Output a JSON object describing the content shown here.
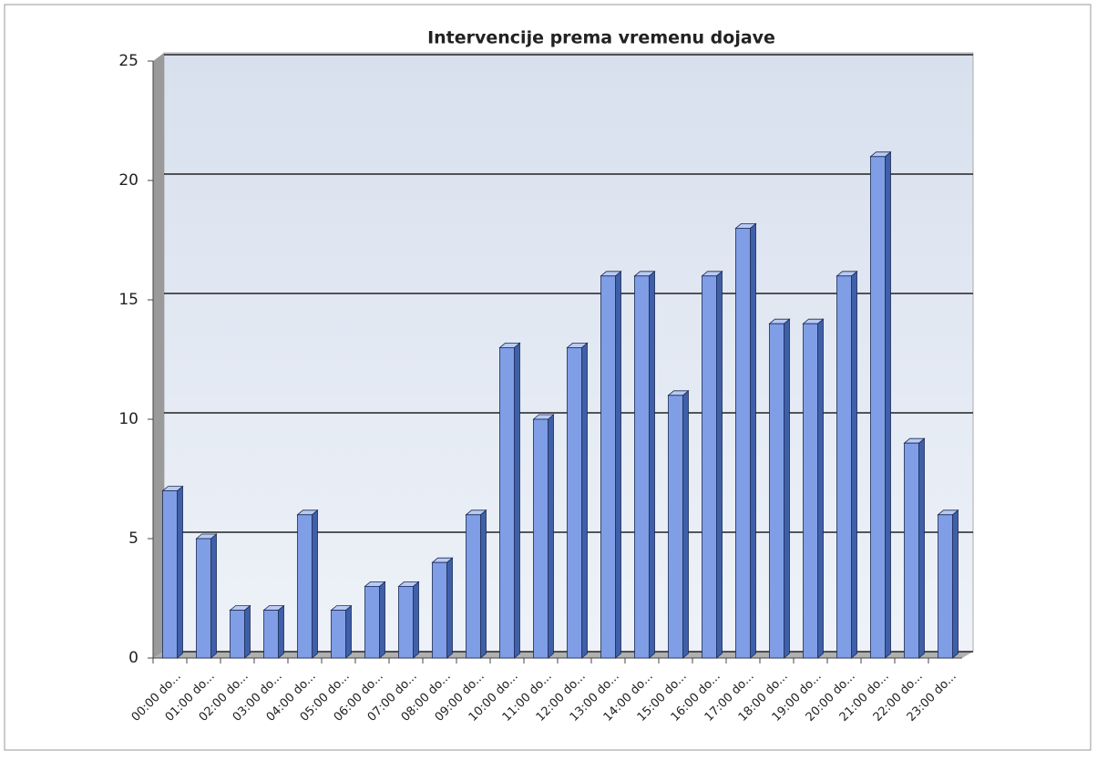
{
  "chart_data": {
    "type": "bar",
    "title": "Intervencije prema vremenu dojave",
    "categories": [
      "00:00 do...",
      "01:00 do...",
      "02:00 do...",
      "03:00 do...",
      "04:00 do...",
      "05:00 do...",
      "06:00 do...",
      "07:00 do...",
      "08:00 do...",
      "09:00 do...",
      "10:00 do...",
      "11:00 do...",
      "12:00 do...",
      "13:00 do...",
      "14:00 do...",
      "15:00 do...",
      "16:00 do...",
      "17:00 do...",
      "18:00 do...",
      "19:00 do...",
      "20:00 do...",
      "21:00 do...",
      "22:00 do...",
      "23:00 do..."
    ],
    "values": [
      7,
      5,
      2,
      2,
      6,
      2,
      3,
      3,
      4,
      6,
      13,
      10,
      13,
      16,
      16,
      11,
      16,
      18,
      14,
      14,
      16,
      21,
      9,
      6
    ],
    "color": "#7f9ee6",
    "ylim": [
      0,
      25
    ],
    "yticks": [
      0,
      5,
      10,
      15,
      20,
      25
    ],
    "grid": true
  }
}
